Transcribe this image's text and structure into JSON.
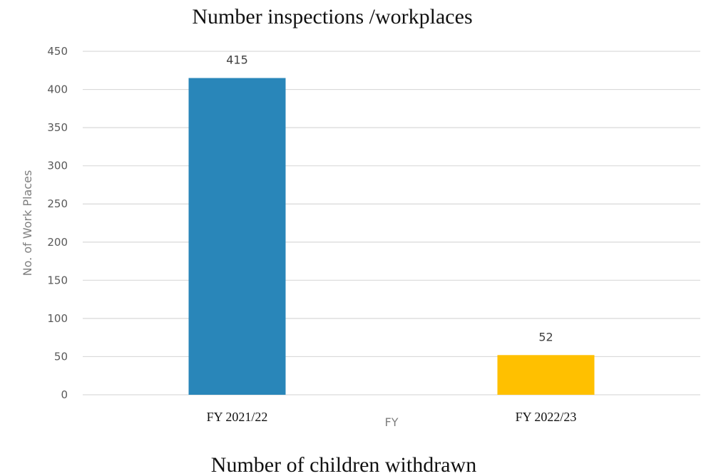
{
  "chart_data": {
    "type": "bar",
    "title": "Number inspections /workplaces",
    "caption": "Number of children withdrawn",
    "xlabel": "FY",
    "ylabel": "No. of Work Places",
    "categories": [
      "FY 2021/22",
      "FY 2022/23"
    ],
    "values": [
      415,
      52
    ],
    "bar_colors": [
      "#2986B9",
      "#FFC000"
    ],
    "ylim": [
      0,
      450
    ],
    "yticks": [
      0,
      50,
      100,
      150,
      200,
      250,
      300,
      350,
      400,
      450
    ],
    "grid": true,
    "data_labels": true,
    "legend": "none"
  }
}
